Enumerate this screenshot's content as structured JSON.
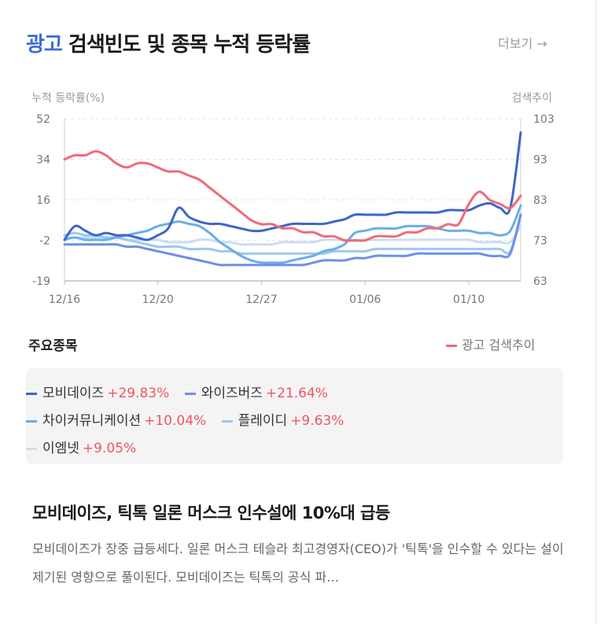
{
  "header": {
    "keyword": "광고",
    "title": "검색빈도 및 종목 누적 등락률",
    "more_label": "더보기 →"
  },
  "chart_data": {
    "type": "line",
    "left_axis_title": "누적 등락률(%)",
    "right_axis_title": "검색추이",
    "y_left_ticks": [
      "52",
      "34",
      "16",
      "-2",
      "-19"
    ],
    "y_left_range": [
      -19,
      52
    ],
    "y_right_ticks": [
      "103",
      "93",
      "83",
      "73",
      "63"
    ],
    "y_right_range": [
      63,
      103
    ],
    "x_labels": [
      "12/16",
      "12/20",
      "12/27",
      "01/06",
      "01/10"
    ],
    "x_label_index": [
      0,
      9,
      19,
      29,
      39
    ],
    "grid": true,
    "series": [
      {
        "name": "모비데이즈",
        "color": "#3d66c6",
        "axis": "left",
        "values": [
          -1,
          5,
          3,
          1,
          2,
          1,
          1,
          0,
          -1,
          1,
          4,
          13,
          9,
          7,
          6,
          6,
          5,
          4,
          3,
          3,
          4,
          5,
          6,
          6,
          6,
          6,
          7,
          8,
          10,
          10,
          10,
          10,
          11,
          11,
          11,
          11,
          11,
          12,
          12,
          12,
          14,
          15,
          13,
          13,
          46
        ]
      },
      {
        "name": "와이즈버즈",
        "color": "#6d8fe6",
        "axis": "left",
        "values": [
          -3,
          -3,
          -3,
          -3,
          -3,
          -3,
          -4,
          -4,
          -5,
          -6,
          -7,
          -8,
          -9,
          -10,
          -11,
          -12,
          -12,
          -12,
          -12,
          -12,
          -12,
          -12,
          -12,
          -12,
          -11,
          -10,
          -10,
          -10,
          -9,
          -9,
          -8,
          -8,
          -8,
          -8,
          -7,
          -7,
          -7,
          -7,
          -7,
          -7,
          -7,
          -8,
          -8,
          -7,
          10
        ]
      },
      {
        "name": "차이커뮤니케이션",
        "color": "#6aaee8",
        "axis": "left",
        "values": [
          -1,
          0,
          -1,
          -1,
          -1,
          0,
          1,
          2,
          3,
          5,
          6,
          7,
          6,
          5,
          2,
          -2,
          -5,
          -8,
          -10,
          -11,
          -11,
          -11,
          -10,
          -9,
          -8,
          -6,
          -5,
          -3,
          2,
          3,
          4,
          4,
          4,
          5,
          5,
          5,
          4,
          3,
          3,
          3,
          2,
          2,
          1,
          3,
          14
        ]
      },
      {
        "name": "플레이디",
        "color": "#9cc7f2",
        "axis": "left",
        "values": [
          1,
          2,
          1,
          1,
          0,
          0,
          -1,
          -2,
          -3,
          -4,
          -4,
          -4,
          -5,
          -5,
          -5,
          -6,
          -6,
          -7,
          -7,
          -7,
          -7,
          -7,
          -7,
          -7,
          -7,
          -7,
          -6,
          -6,
          -6,
          -6,
          -5,
          -5,
          -5,
          -5,
          -5,
          -5,
          -5,
          -5,
          -5,
          -5,
          -5,
          -5,
          -5,
          -6,
          10
        ]
      },
      {
        "name": "이엠넷",
        "color": "#c9ddf3",
        "axis": "left",
        "values": [
          0,
          0,
          0,
          0,
          0,
          0,
          -1,
          -1,
          -1,
          -1,
          -2,
          -2,
          -2,
          -1,
          -1,
          -2,
          -2,
          -3,
          -3,
          -3,
          -3,
          -2,
          -2,
          -2,
          -2,
          -1,
          -1,
          -1,
          -1,
          -1,
          -1,
          -1,
          -1,
          -1,
          -1,
          -1,
          -1,
          -1,
          -1,
          -1,
          -2,
          -2,
          -2,
          -2,
          5
        ]
      },
      {
        "name": "광고 검색추이",
        "color": "#f06a7a",
        "axis": "right",
        "values": [
          93,
          94,
          94,
          95,
          94,
          92,
          91,
          92,
          92,
          91,
          90,
          90,
          89,
          88,
          86,
          84,
          82,
          80,
          78,
          77,
          77,
          76,
          76,
          75,
          75,
          74,
          74,
          73,
          73,
          73,
          74,
          74,
          74,
          75,
          75,
          76,
          76,
          77,
          77,
          82,
          85,
          83,
          82,
          81,
          84
        ]
      }
    ]
  },
  "section": {
    "title": "주요종목"
  },
  "legend": {
    "search_label": "광고 검색추이",
    "search_color": "#f06a7a"
  },
  "stocks": [
    {
      "name": "모비데이즈",
      "pct": "+29.83%",
      "color": "#3d66c6"
    },
    {
      "name": "와이즈버즈",
      "pct": "+21.64%",
      "color": "#6d8fe6"
    },
    {
      "name": "차이커뮤니케이션",
      "pct": "+10.04%",
      "color": "#6aaee8"
    },
    {
      "name": "플레이디",
      "pct": "+9.63%",
      "color": "#9cc7f2"
    },
    {
      "name": "이엠넷",
      "pct": "+9.05%",
      "color": "#c9ddf3"
    }
  ],
  "news": {
    "title": "모비데이즈, 틱톡 일론 머스크 인수설에 10%대 급등",
    "body": "모비데이즈가 장중 급등세다. 일론 머스크 테슬라 최고경영자(CEO)가 '틱톡'을 인수할 수 있다는 설이 제기된 영향으로 풀이된다. 모비데이즈는 틱톡의 공식 파…"
  }
}
